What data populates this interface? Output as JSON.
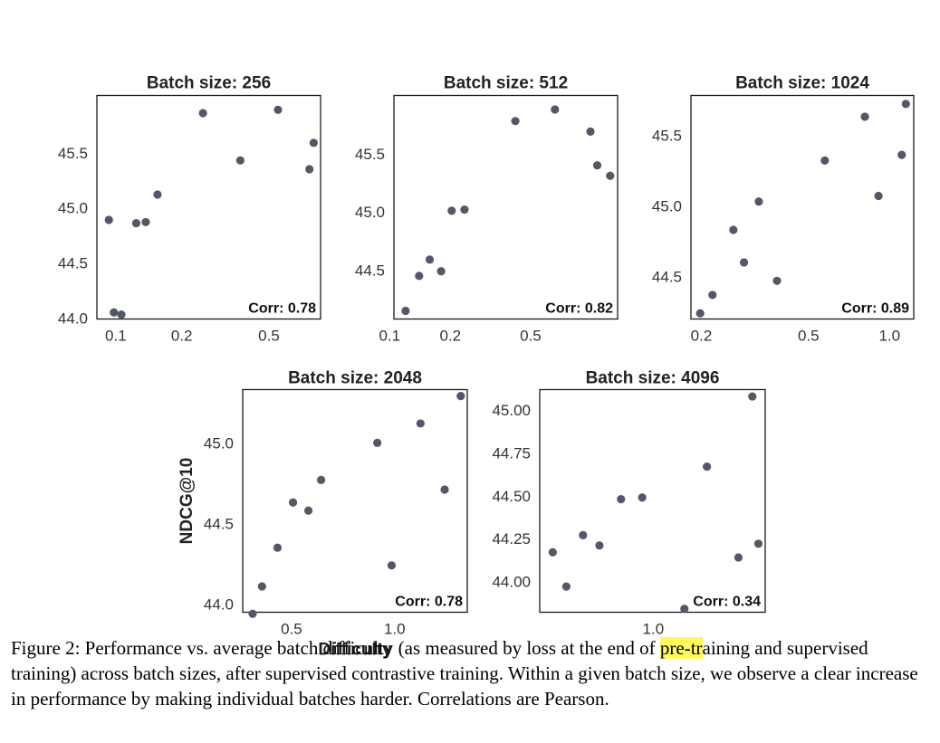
{
  "caption": {
    "pre": "Figure 2: Performance vs. average batch difficulty (as measured by loss at the end of ",
    "highlight": "pre-tr",
    "post": "aining and supervised training) across batch sizes, after supervised contrastive training. Within a given batch size, we observe a clear increase in performance by making individual batches harder. Correlations are Pearson."
  },
  "colors": {
    "point": "#525866",
    "highlight": "#fff95c"
  },
  "chart_data": [
    {
      "type": "scatter",
      "title": "Batch size: 256",
      "xscale": "log",
      "xlim": [
        0.082,
        0.86
      ],
      "ylim": [
        43.99,
        46.02
      ],
      "xticks": [
        {
          "v": 0.1,
          "label": "0.1"
        },
        {
          "v": 0.2,
          "label": "0.2"
        },
        {
          "v": 0.5,
          "label": "0.5"
        }
      ],
      "yticks": [
        {
          "v": 44.0,
          "label": "44.0"
        },
        {
          "v": 44.5,
          "label": "44.5"
        },
        {
          "v": 45.0,
          "label": "45.0"
        },
        {
          "v": 45.5,
          "label": "45.5"
        }
      ],
      "annotation": "Corr: 0.78",
      "xlabel": "",
      "ylabel": "",
      "points": [
        {
          "x": 0.093,
          "y": 44.89
        },
        {
          "x": 0.098,
          "y": 44.05
        },
        {
          "x": 0.106,
          "y": 44.03
        },
        {
          "x": 0.124,
          "y": 44.86
        },
        {
          "x": 0.137,
          "y": 44.87
        },
        {
          "x": 0.155,
          "y": 45.12
        },
        {
          "x": 0.25,
          "y": 45.86
        },
        {
          "x": 0.37,
          "y": 45.43
        },
        {
          "x": 0.55,
          "y": 45.89
        },
        {
          "x": 0.765,
          "y": 45.35
        },
        {
          "x": 0.8,
          "y": 45.59
        }
      ]
    },
    {
      "type": "scatter",
      "title": "Batch size: 512",
      "xscale": "log",
      "xlim": [
        0.105,
        1.35
      ],
      "ylim": [
        44.08,
        46.0
      ],
      "xticks": [
        {
          "v": 0.1,
          "label": "0.1"
        },
        {
          "v": 0.2,
          "label": "0.2"
        },
        {
          "v": 0.5,
          "label": "0.5"
        }
      ],
      "yticks": [
        {
          "v": 44.5,
          "label": "44.5"
        },
        {
          "v": 45.0,
          "label": "45.0"
        },
        {
          "v": 45.5,
          "label": "45.5"
        }
      ],
      "annotation": "Corr: 0.82",
      "xlabel": "",
      "ylabel": "",
      "points": [
        {
          "x": 0.12,
          "y": 44.15
        },
        {
          "x": 0.14,
          "y": 44.45
        },
        {
          "x": 0.158,
          "y": 44.59
        },
        {
          "x": 0.18,
          "y": 44.49
        },
        {
          "x": 0.203,
          "y": 45.01
        },
        {
          "x": 0.235,
          "y": 45.02
        },
        {
          "x": 0.42,
          "y": 45.78
        },
        {
          "x": 0.66,
          "y": 45.88
        },
        {
          "x": 0.99,
          "y": 45.69
        },
        {
          "x": 1.07,
          "y": 45.4
        },
        {
          "x": 1.24,
          "y": 45.31
        }
      ]
    },
    {
      "type": "scatter",
      "title": "Batch size: 1024",
      "xscale": "log",
      "xlim": [
        0.183,
        1.23
      ],
      "ylim": [
        44.2,
        45.78
      ],
      "xticks": [
        {
          "v": 0.2,
          "label": "0.2"
        },
        {
          "v": 0.5,
          "label": "0.5"
        },
        {
          "v": 1.0,
          "label": "1.0"
        }
      ],
      "yticks": [
        {
          "v": 44.5,
          "label": "44.5"
        },
        {
          "v": 45.0,
          "label": "45.0"
        },
        {
          "v": 45.5,
          "label": "45.5"
        }
      ],
      "annotation": "Corr: 0.89",
      "xlabel": "",
      "ylabel": "",
      "points": [
        {
          "x": 0.198,
          "y": 44.24
        },
        {
          "x": 0.22,
          "y": 44.37
        },
        {
          "x": 0.263,
          "y": 44.83
        },
        {
          "x": 0.288,
          "y": 44.6
        },
        {
          "x": 0.327,
          "y": 45.03
        },
        {
          "x": 0.382,
          "y": 44.47
        },
        {
          "x": 0.575,
          "y": 45.32
        },
        {
          "x": 0.81,
          "y": 45.63
        },
        {
          "x": 0.91,
          "y": 45.07
        },
        {
          "x": 1.11,
          "y": 45.36
        },
        {
          "x": 1.15,
          "y": 45.72
        }
      ]
    },
    {
      "type": "scatter",
      "title": "Batch size: 2048",
      "xscale": "log",
      "xlim": [
        0.36,
        1.63
      ],
      "ylim": [
        43.95,
        45.33
      ],
      "xticks": [
        {
          "v": 0.5,
          "label": "0.5"
        },
        {
          "v": 1.0,
          "label": "1.0"
        }
      ],
      "yticks": [
        {
          "v": 44.0,
          "label": "44.0"
        },
        {
          "v": 44.5,
          "label": "44.5"
        },
        {
          "v": 45.0,
          "label": "45.0"
        }
      ],
      "annotation": "Corr: 0.78",
      "xlabel": "Difficulty",
      "ylabel": "NDCG@10",
      "points": [
        {
          "x": 0.385,
          "y": 43.94
        },
        {
          "x": 0.41,
          "y": 44.11
        },
        {
          "x": 0.455,
          "y": 44.35
        },
        {
          "x": 0.505,
          "y": 44.63
        },
        {
          "x": 0.56,
          "y": 44.58
        },
        {
          "x": 0.61,
          "y": 44.77
        },
        {
          "x": 0.89,
          "y": 45.0
        },
        {
          "x": 0.98,
          "y": 44.24
        },
        {
          "x": 1.19,
          "y": 45.12
        },
        {
          "x": 1.4,
          "y": 44.71
        },
        {
          "x": 1.56,
          "y": 45.29
        }
      ]
    },
    {
      "type": "scatter",
      "title": "Batch size: 4096",
      "xscale": "log",
      "xlim": [
        0.53,
        1.87
      ],
      "ylim": [
        43.82,
        45.12
      ],
      "xticks": [
        {
          "v": 1.0,
          "label": "1.0"
        }
      ],
      "yticks": [
        {
          "v": 44.0,
          "label": "44.00"
        },
        {
          "v": 44.25,
          "label": "44.25"
        },
        {
          "v": 44.5,
          "label": "44.50"
        },
        {
          "v": 44.75,
          "label": "44.75"
        },
        {
          "v": 45.0,
          "label": "45.00"
        }
      ],
      "annotation": "Corr: 0.34",
      "xlabel": "",
      "ylabel": "",
      "points": [
        {
          "x": 0.57,
          "y": 44.17
        },
        {
          "x": 0.615,
          "y": 43.97
        },
        {
          "x": 0.675,
          "y": 44.27
        },
        {
          "x": 0.74,
          "y": 44.21
        },
        {
          "x": 0.835,
          "y": 44.48
        },
        {
          "x": 0.94,
          "y": 44.49
        },
        {
          "x": 1.19,
          "y": 43.84
        },
        {
          "x": 1.35,
          "y": 44.67
        },
        {
          "x": 1.61,
          "y": 44.14
        },
        {
          "x": 1.74,
          "y": 45.08
        },
        {
          "x": 1.8,
          "y": 44.22
        }
      ]
    }
  ]
}
